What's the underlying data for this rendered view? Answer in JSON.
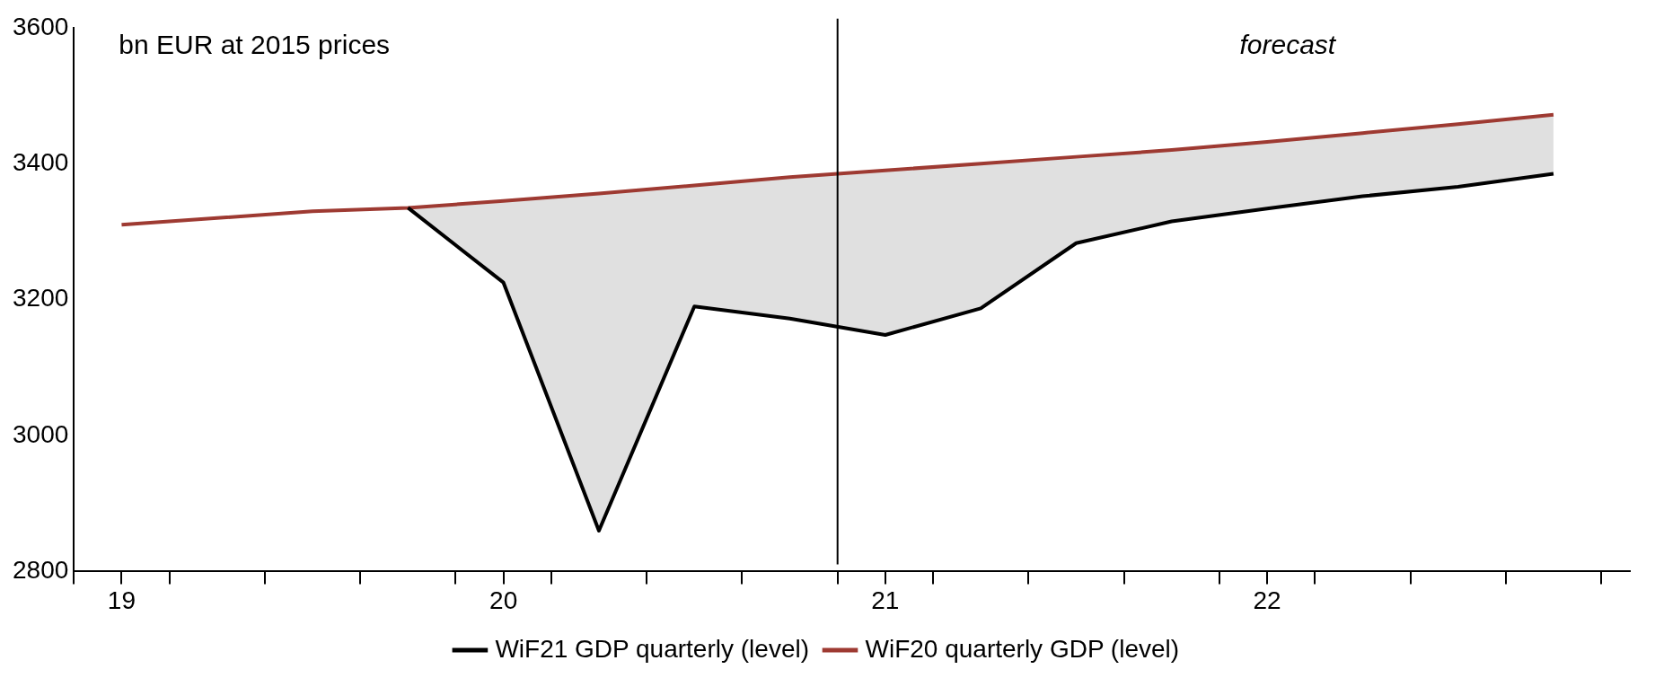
{
  "chart_data": {
    "type": "line",
    "x": [
      2019,
      2019.25,
      2019.5,
      2019.75,
      2020,
      2020.25,
      2020.5,
      2020.75,
      2021,
      2021.25,
      2021.5,
      2021.75,
      2022,
      2022.25,
      2022.5,
      2022.75
    ],
    "series": [
      {
        "name": "WiF21 GDP quarterly (level)",
        "color": "#000000",
        "values": [
          null,
          null,
          null,
          3335,
          3225,
          2860,
          3190,
          3172,
          3148,
          3187,
          3283,
          3315,
          3334,
          3352,
          3366,
          3385
        ],
        "lower": [
          null,
          null,
          null,
          3335,
          3225,
          2860,
          3190,
          3172,
          3148,
          3187,
          3283,
          3315,
          3334,
          3352,
          3366,
          3385
        ],
        "upper": [
          null,
          null,
          null,
          3335,
          3345,
          3356,
          3368,
          3380,
          3390,
          3400,
          3410,
          3420,
          3432,
          3445,
          3458,
          3472
        ]
      },
      {
        "name": "WiF20 quarterly GDP (level)",
        "color": "#9e3a32",
        "values": [
          3310,
          3320,
          3330,
          3335,
          3345,
          3356,
          3368,
          3380,
          3390,
          3400,
          3410,
          3420,
          3432,
          3445,
          3458,
          3472
        ]
      }
    ],
    "xlim": [
      2018.875,
      2022.95
    ],
    "xticks": [
      {
        "value": 2018.875,
        "label": null
      },
      {
        "value": 2019,
        "label": "19"
      },
      {
        "value": 2019.125,
        "label": null
      },
      {
        "value": 2019.375,
        "label": null
      },
      {
        "value": 2019.625,
        "label": null
      },
      {
        "value": 2019.875,
        "label": null
      },
      {
        "value": 2020,
        "label": "20"
      },
      {
        "value": 2020.125,
        "label": null
      },
      {
        "value": 2020.375,
        "label": null
      },
      {
        "value": 2020.625,
        "label": null
      },
      {
        "value": 2020.875,
        "label": null
      },
      {
        "value": 2021,
        "label": "21"
      },
      {
        "value": 2021.125,
        "label": null
      },
      {
        "value": 2021.375,
        "label": null
      },
      {
        "value": 2021.625,
        "label": null
      },
      {
        "value": 2021.875,
        "label": null
      },
      {
        "value": 2022,
        "label": "22"
      },
      {
        "value": 2022.125,
        "label": null
      },
      {
        "value": 2022.375,
        "label": null
      },
      {
        "value": 2022.625,
        "label": null
      },
      {
        "value": 2022.875,
        "label": null
      }
    ],
    "ylim": [
      2800,
      3600
    ],
    "yticks": [
      2800,
      3000,
      3200,
      3400,
      3600
    ],
    "ref_lines": [
      {
        "axis": "x",
        "value": 2020.875,
        "color": "#000000"
      }
    ],
    "annotations": [
      "bn EUR at 2015 prices",
      "forecast"
    ],
    "grid": false,
    "legend": "bottom",
    "marker": "none",
    "line_style": "solid"
  }
}
